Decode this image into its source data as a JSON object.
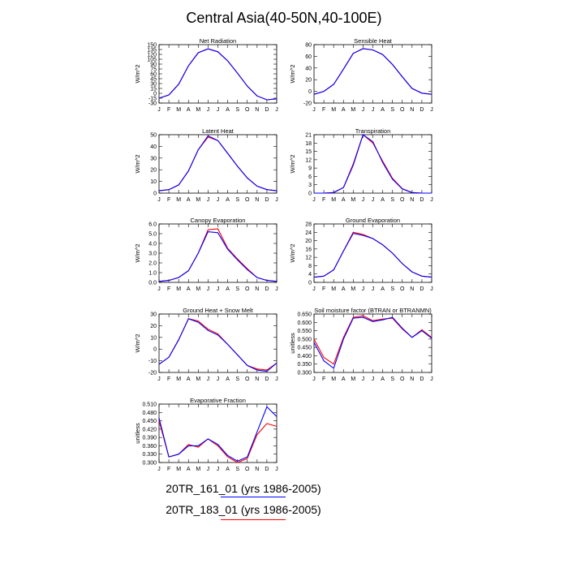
{
  "figure": {
    "title": "Central Asia(40-50N,40-100E)",
    "colors": {
      "series1": "#0000ff",
      "series2": "#ff0000"
    },
    "legend": [
      {
        "label": "20TR_161_01 (yrs 1986-2005)",
        "color": "#0000ff"
      },
      {
        "label": "20TR_183_01 (yrs 1986-2005)",
        "color": "#ff0000"
      }
    ]
  },
  "chart_data": [
    {
      "type": "line",
      "title": "Net Radiation",
      "ylabel": "W/m^2",
      "categories": [
        "J",
        "F",
        "M",
        "A",
        "M",
        "J",
        "J",
        "A",
        "S",
        "O",
        "N",
        "D",
        "J"
      ],
      "ylim": [
        -30,
        150
      ],
      "yticks": [
        -30,
        -15,
        0,
        15,
        30,
        45,
        60,
        75,
        90,
        105,
        120,
        135,
        150
      ],
      "series": [
        {
          "values": [
            -15,
            -5,
            28,
            85,
            125,
            137,
            128,
            100,
            62,
            22,
            -8,
            -20,
            -17
          ]
        },
        {
          "values": [
            -15,
            -5,
            28,
            85,
            125,
            137,
            128,
            100,
            62,
            22,
            -8,
            -20,
            -17
          ]
        }
      ]
    },
    {
      "type": "line",
      "title": "Sensible Heat",
      "ylabel": "W/m^2",
      "categories": [
        "J",
        "F",
        "M",
        "A",
        "M",
        "J",
        "J",
        "A",
        "S",
        "O",
        "N",
        "D",
        "J"
      ],
      "ylim": [
        -20,
        80
      ],
      "yticks": [
        -20,
        0,
        20,
        40,
        60,
        80
      ],
      "series": [
        {
          "values": [
            -5,
            0,
            12,
            38,
            65,
            73,
            71,
            63,
            46,
            25,
            5,
            -3,
            -5
          ]
        },
        {
          "values": [
            -5,
            0,
            12,
            38,
            65,
            73,
            71,
            63,
            46,
            25,
            5,
            -3,
            -5
          ]
        }
      ]
    },
    {
      "type": "line",
      "title": "Latent Heat",
      "ylabel": "W/m^2",
      "categories": [
        "J",
        "F",
        "M",
        "A",
        "M",
        "J",
        "J",
        "A",
        "S",
        "O",
        "N",
        "D",
        "J"
      ],
      "ylim": [
        0,
        50
      ],
      "yticks": [
        0,
        10,
        20,
        30,
        40,
        50
      ],
      "series": [
        {
          "values": [
            2,
            3,
            7,
            19,
            37,
            49,
            45,
            34,
            23,
            13,
            6,
            3,
            2
          ]
        },
        {
          "values": [
            2,
            3,
            7,
            19,
            37,
            48,
            45,
            34,
            23,
            13,
            6,
            3,
            2
          ]
        }
      ]
    },
    {
      "type": "line",
      "title": "Transpiration",
      "ylabel": "W/m^2",
      "categories": [
        "J",
        "F",
        "M",
        "A",
        "M",
        "J",
        "J",
        "A",
        "S",
        "O",
        "N",
        "D",
        "J"
      ],
      "ylim": [
        0,
        21
      ],
      "yticks": [
        0,
        3,
        6,
        9,
        12,
        15,
        18,
        21
      ],
      "series": [
        {
          "values": [
            0,
            0,
            0.2,
            2,
            10,
            21,
            18.5,
            11,
            5,
            1.5,
            0.2,
            0,
            0
          ]
        },
        {
          "values": [
            0,
            0,
            0.2,
            2,
            10.5,
            21,
            18,
            11.5,
            5.3,
            1.6,
            0.2,
            0,
            0
          ]
        }
      ]
    },
    {
      "type": "line",
      "title": "Canopy Evaporation",
      "ylabel": "W/m^2",
      "categories": [
        "J",
        "F",
        "M",
        "A",
        "M",
        "J",
        "J",
        "A",
        "S",
        "O",
        "N",
        "D",
        "J"
      ],
      "ylim": [
        0,
        6
      ],
      "yticks": [
        0.0,
        0.8,
        1.6,
        2.4,
        3.2,
        4.0,
        4.8,
        5.6
      ],
      "ytick_labels": [
        "0.0",
        "1.0",
        "2.0",
        "3.0",
        "4.0",
        "5.0",
        "6.0"
      ],
      "yticks_labeled": [
        0.0,
        1.0,
        2.0,
        3.0,
        4.0,
        5.0,
        6.0
      ],
      "series": [
        {
          "values": [
            0.1,
            0.2,
            0.5,
            1.2,
            3.0,
            5.2,
            5.1,
            3.4,
            2.3,
            1.3,
            0.5,
            0.2,
            0.1
          ]
        },
        {
          "values": [
            0.1,
            0.2,
            0.5,
            1.2,
            3.0,
            5.4,
            5.5,
            3.5,
            2.4,
            1.4,
            0.5,
            0.2,
            0.1
          ]
        }
      ]
    },
    {
      "type": "line",
      "title": "Ground Evaporation",
      "ylabel": "W/m^2",
      "categories": [
        "J",
        "F",
        "M",
        "A",
        "M",
        "J",
        "J",
        "A",
        "S",
        "O",
        "N",
        "D",
        "J"
      ],
      "ylim": [
        0,
        28
      ],
      "yticks_labeled": [
        0,
        4,
        8,
        12,
        16,
        20,
        24,
        28
      ],
      "series": [
        {
          "values": [
            2.5,
            3,
            6,
            15,
            23.5,
            22.5,
            21,
            18,
            14,
            9,
            5,
            3,
            2.5
          ]
        },
        {
          "values": [
            2.5,
            3,
            6,
            15,
            24,
            23,
            21,
            18,
            14,
            9,
            5,
            3,
            2.5
          ]
        }
      ]
    },
    {
      "type": "line",
      "title": "Ground Heat + Snow Melt",
      "ylabel": "W/m^2",
      "categories": [
        "J",
        "F",
        "M",
        "A",
        "M",
        "J",
        "J",
        "A",
        "S",
        "O",
        "N",
        "D",
        "J"
      ],
      "ylim": [
        -20,
        30
      ],
      "yticks_labeled": [
        -20,
        -10,
        0,
        10,
        20,
        30
      ],
      "series": [
        {
          "values": [
            -13,
            -7,
            8,
            26,
            23,
            16,
            12,
            4,
            -5,
            -14,
            -18,
            -19,
            -12
          ]
        },
        {
          "values": [
            -13,
            -7,
            8,
            26,
            24,
            17,
            13,
            4,
            -5,
            -14,
            -17,
            -18,
            -12
          ]
        }
      ]
    },
    {
      "type": "line",
      "title": "Soil moisture factor (BTRAN or BTRANMN)",
      "ylabel": "unitless",
      "categories": [
        "J",
        "F",
        "M",
        "A",
        "M",
        "J",
        "J",
        "A",
        "S",
        "O",
        "N",
        "D",
        "J"
      ],
      "ylim": [
        0.3,
        0.65
      ],
      "yticks_labeled": [
        0.3,
        0.35,
        0.4,
        0.45,
        0.5,
        0.55,
        0.6,
        0.65
      ],
      "ytick_labels": [
        "0.300",
        "0.350",
        "0.400",
        "0.450",
        "0.500",
        "0.550",
        "0.600",
        "0.650"
      ],
      "series": [
        {
          "values": [
            0.48,
            0.37,
            0.325,
            0.5,
            0.625,
            0.63,
            0.605,
            0.615,
            0.63,
            0.565,
            0.51,
            0.55,
            0.505
          ]
        },
        {
          "values": [
            0.5,
            0.39,
            0.35,
            0.51,
            0.63,
            0.64,
            0.61,
            0.62,
            0.625,
            0.56,
            0.51,
            0.555,
            0.51
          ]
        }
      ]
    },
    {
      "type": "line",
      "title": "Evaporative Fraction",
      "ylabel": "unitless",
      "categories": [
        "J",
        "F",
        "M",
        "A",
        "M",
        "J",
        "J",
        "A",
        "S",
        "O",
        "N",
        "D",
        "J"
      ],
      "ylim": [
        0.3,
        0.51
      ],
      "yticks_labeled": [
        0.3,
        0.33,
        0.36,
        0.39,
        0.42,
        0.45,
        0.48,
        0.51
      ],
      "ytick_labels": [
        "0.300",
        "0.330",
        "0.360",
        "0.390",
        "0.420",
        "0.450",
        "0.480",
        "0.510"
      ],
      "series": [
        {
          "values": [
            0.46,
            0.32,
            0.33,
            0.36,
            0.36,
            0.385,
            0.365,
            0.325,
            0.305,
            0.32,
            0.41,
            0.5,
            0.465
          ]
        },
        {
          "values": [
            0.45,
            0.32,
            0.33,
            0.365,
            0.355,
            0.385,
            0.36,
            0.32,
            0.3,
            0.315,
            0.4,
            0.44,
            0.43
          ]
        }
      ]
    }
  ]
}
